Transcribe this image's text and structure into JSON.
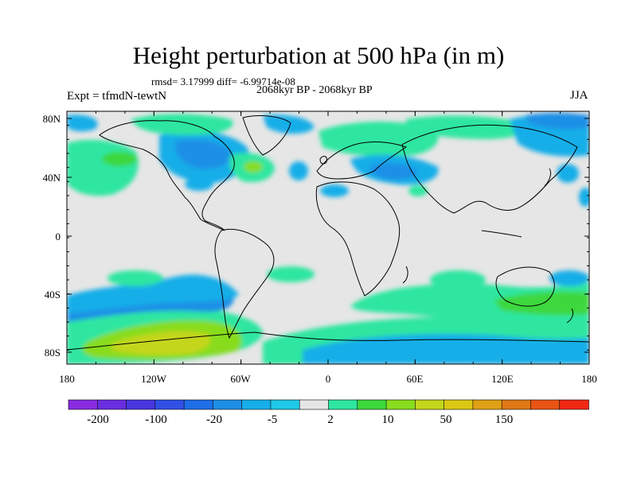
{
  "title": "Height perturbation at 500 hPa (in m)",
  "stats_text": "rmsd= 3.17999  diff= -6.99714e-08",
  "period_text": "2068kyr BP - 2068kyr BP",
  "expt_text": "Expt = tfmdN-tewtN",
  "season_text": "JJA",
  "lat_labels": [
    "80N",
    "40N",
    "0",
    "40S",
    "80S"
  ],
  "lon_labels": [
    "180",
    "120W",
    "60W",
    "0",
    "60E",
    "120E",
    "180"
  ],
  "colorbar": {
    "labels": [
      "-200",
      "-100",
      "-20",
      "-5",
      "2",
      "10",
      "50",
      "150"
    ],
    "colors": [
      "#8a2be2",
      "#6a2ee0",
      "#4a36e0",
      "#3050e6",
      "#1e6ee8",
      "#1e8fe6",
      "#16aee8",
      "#1ec8e6",
      "#e6e6e6",
      "#2ee6a0",
      "#3cd83c",
      "#88dc1e",
      "#c4d61c",
      "#dcc814",
      "#e0a016",
      "#e07816",
      "#e85414",
      "#f02814"
    ]
  },
  "colors": {
    "background": "#e6e6e6",
    "coast": "#000000"
  }
}
